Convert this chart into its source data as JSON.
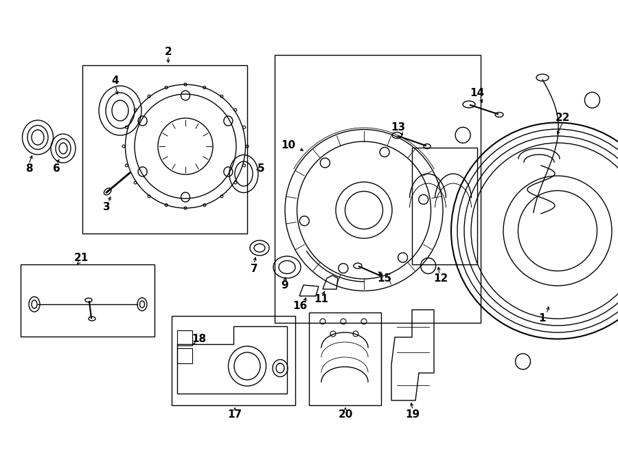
{
  "bg": "#ffffff",
  "lc": "#000000",
  "lw": 1.0,
  "figw": 9.0,
  "figh": 6.61,
  "dpi": 100,
  "xlim": [
    0,
    900
  ],
  "ylim": [
    0,
    661
  ]
}
